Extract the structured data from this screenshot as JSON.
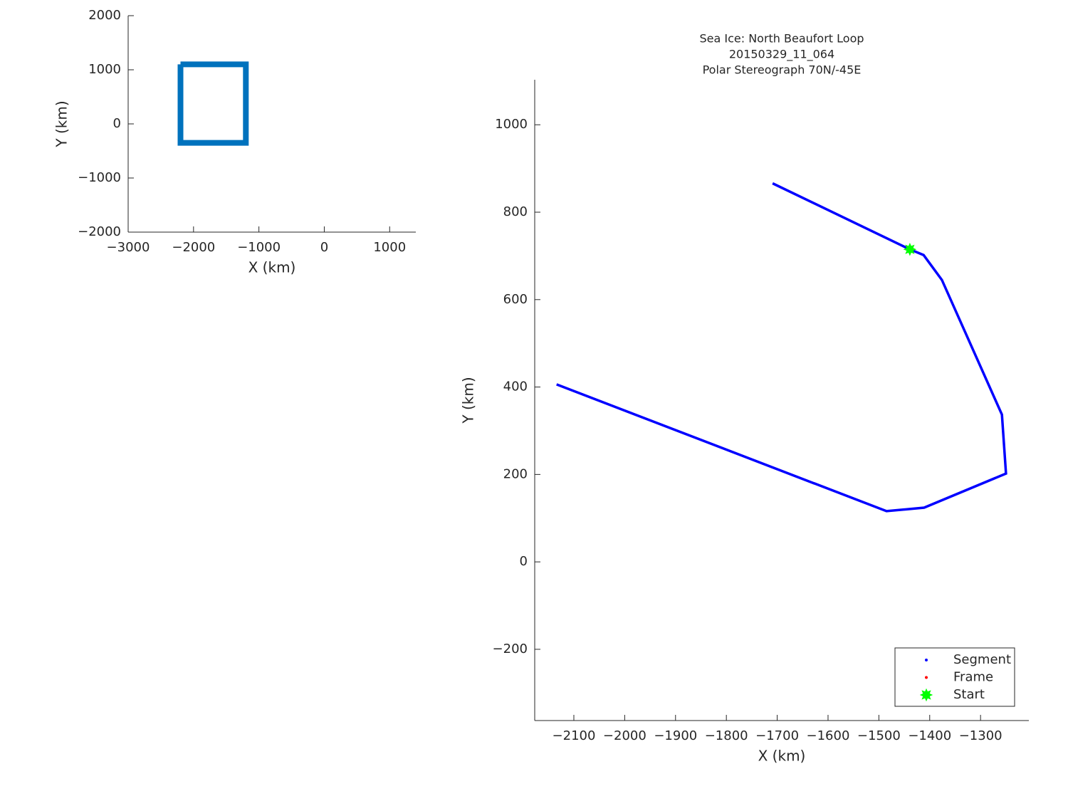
{
  "chart_data": [
    {
      "type": "line",
      "xlabel": "X (km)",
      "ylabel": "Y (km)",
      "xlim": [
        -3000,
        1400
      ],
      "ylim": [
        -2000,
        2000
      ],
      "xticks": [
        {
          "value": -3000,
          "label": "−3000"
        },
        {
          "value": -2000,
          "label": "−2000"
        },
        {
          "value": -1000,
          "label": "−1000"
        },
        0,
        1000
      ],
      "yticks": [
        {
          "value": -2000,
          "label": "−2000"
        },
        {
          "value": -1000,
          "label": "−1000"
        },
        0,
        1000,
        2000
      ],
      "series": [
        {
          "color": "#0072bd",
          "style": "thick-line",
          "x": [
            -2200,
            -1200,
            -1200,
            -2200,
            -2200
          ],
          "values": [
            1100,
            1100,
            -350,
            -350,
            1100
          ]
        }
      ]
    },
    {
      "type": "line",
      "title": [
        "Sea Ice: North Beaufort Loop",
        "20150329_11_064",
        "Polar Stereograph 70N/-45E"
      ],
      "xlabel": "X (km)",
      "ylabel": "Y (km)",
      "xlim": [
        -2177,
        -1205
      ],
      "ylim": [
        -363,
        1103
      ],
      "xticks": [
        {
          "value": -2100,
          "label": "−2100"
        },
        {
          "value": -2000,
          "label": "−2000"
        },
        {
          "value": -1900,
          "label": "−1900"
        },
        {
          "value": -1800,
          "label": "−1800"
        },
        {
          "value": -1700,
          "label": "−1700"
        },
        {
          "value": -1600,
          "label": "−1600"
        },
        {
          "value": -1500,
          "label": "−1500"
        },
        {
          "value": -1400,
          "label": "−1400"
        },
        {
          "value": -1300,
          "label": "−1300"
        }
      ],
      "yticks": [
        {
          "value": -200,
          "label": "−200"
        },
        0,
        200,
        400,
        600,
        800,
        1000
      ],
      "legend": "lower right",
      "series": [
        {
          "name": "Segment",
          "color": "#0000ff",
          "style": "line",
          "x": [
            -1709,
            -1439,
            -1412,
            -1376,
            -1258,
            -1250,
            -1411,
            -1485,
            -2134
          ],
          "values": [
            866,
            715,
            702,
            645,
            337,
            202,
            124,
            116,
            406
          ]
        },
        {
          "name": "Frame",
          "color": "#ff0000",
          "style": "dot",
          "x": [],
          "values": []
        },
        {
          "name": "Start",
          "color": "#00ff00",
          "style": "star",
          "x": [
            -1439
          ],
          "values": [
            715
          ]
        }
      ]
    }
  ]
}
